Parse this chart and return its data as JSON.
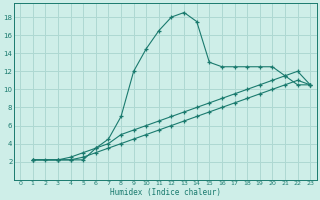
{
  "xlabel": "Humidex (Indice chaleur)",
  "background_color": "#ceeee8",
  "grid_color": "#aed8d2",
  "line_color": "#1a7a6e",
  "xlim": [
    -0.5,
    23.5
  ],
  "ylim": [
    0,
    19.5
  ],
  "xticks": [
    0,
    1,
    2,
    3,
    4,
    5,
    6,
    7,
    8,
    9,
    10,
    11,
    12,
    13,
    14,
    15,
    16,
    17,
    18,
    19,
    20,
    21,
    22,
    23
  ],
  "yticks": [
    2,
    4,
    6,
    8,
    10,
    12,
    14,
    16,
    18
  ],
  "series": [
    {
      "x": [
        1,
        2,
        3,
        4,
        5,
        6,
        7,
        8,
        9,
        10,
        11,
        12,
        13,
        14,
        15,
        16,
        17,
        18,
        19,
        20,
        21,
        22,
        23
      ],
      "y": [
        2.2,
        2.2,
        2.2,
        2.2,
        2.2,
        3.5,
        4.5,
        7.0,
        12.0,
        14.5,
        16.5,
        18.0,
        18.5,
        17.5,
        13.0,
        12.5,
        12.5,
        12.5,
        12.5,
        12.5,
        11.5,
        10.5,
        10.5
      ]
    },
    {
      "x": [
        1,
        3,
        4,
        5,
        6,
        7,
        8,
        9,
        10,
        11,
        12,
        13,
        14,
        15,
        16,
        17,
        18,
        19,
        20,
        21,
        22,
        23
      ],
      "y": [
        2.2,
        2.2,
        2.2,
        2.5,
        3.0,
        3.5,
        4.0,
        4.5,
        5.0,
        5.5,
        6.0,
        6.5,
        7.0,
        7.5,
        8.0,
        8.5,
        9.0,
        9.5,
        10.0,
        10.5,
        11.0,
        10.5
      ]
    },
    {
      "x": [
        1,
        3,
        4,
        5,
        6,
        7,
        8,
        9,
        10,
        11,
        12,
        13,
        14,
        15,
        16,
        17,
        18,
        19,
        20,
        21,
        22,
        23
      ],
      "y": [
        2.2,
        2.2,
        2.5,
        3.0,
        3.5,
        4.0,
        5.0,
        5.5,
        6.0,
        6.5,
        7.0,
        7.5,
        8.0,
        8.5,
        9.0,
        9.5,
        10.0,
        10.5,
        11.0,
        11.5,
        12.0,
        10.5
      ]
    }
  ]
}
